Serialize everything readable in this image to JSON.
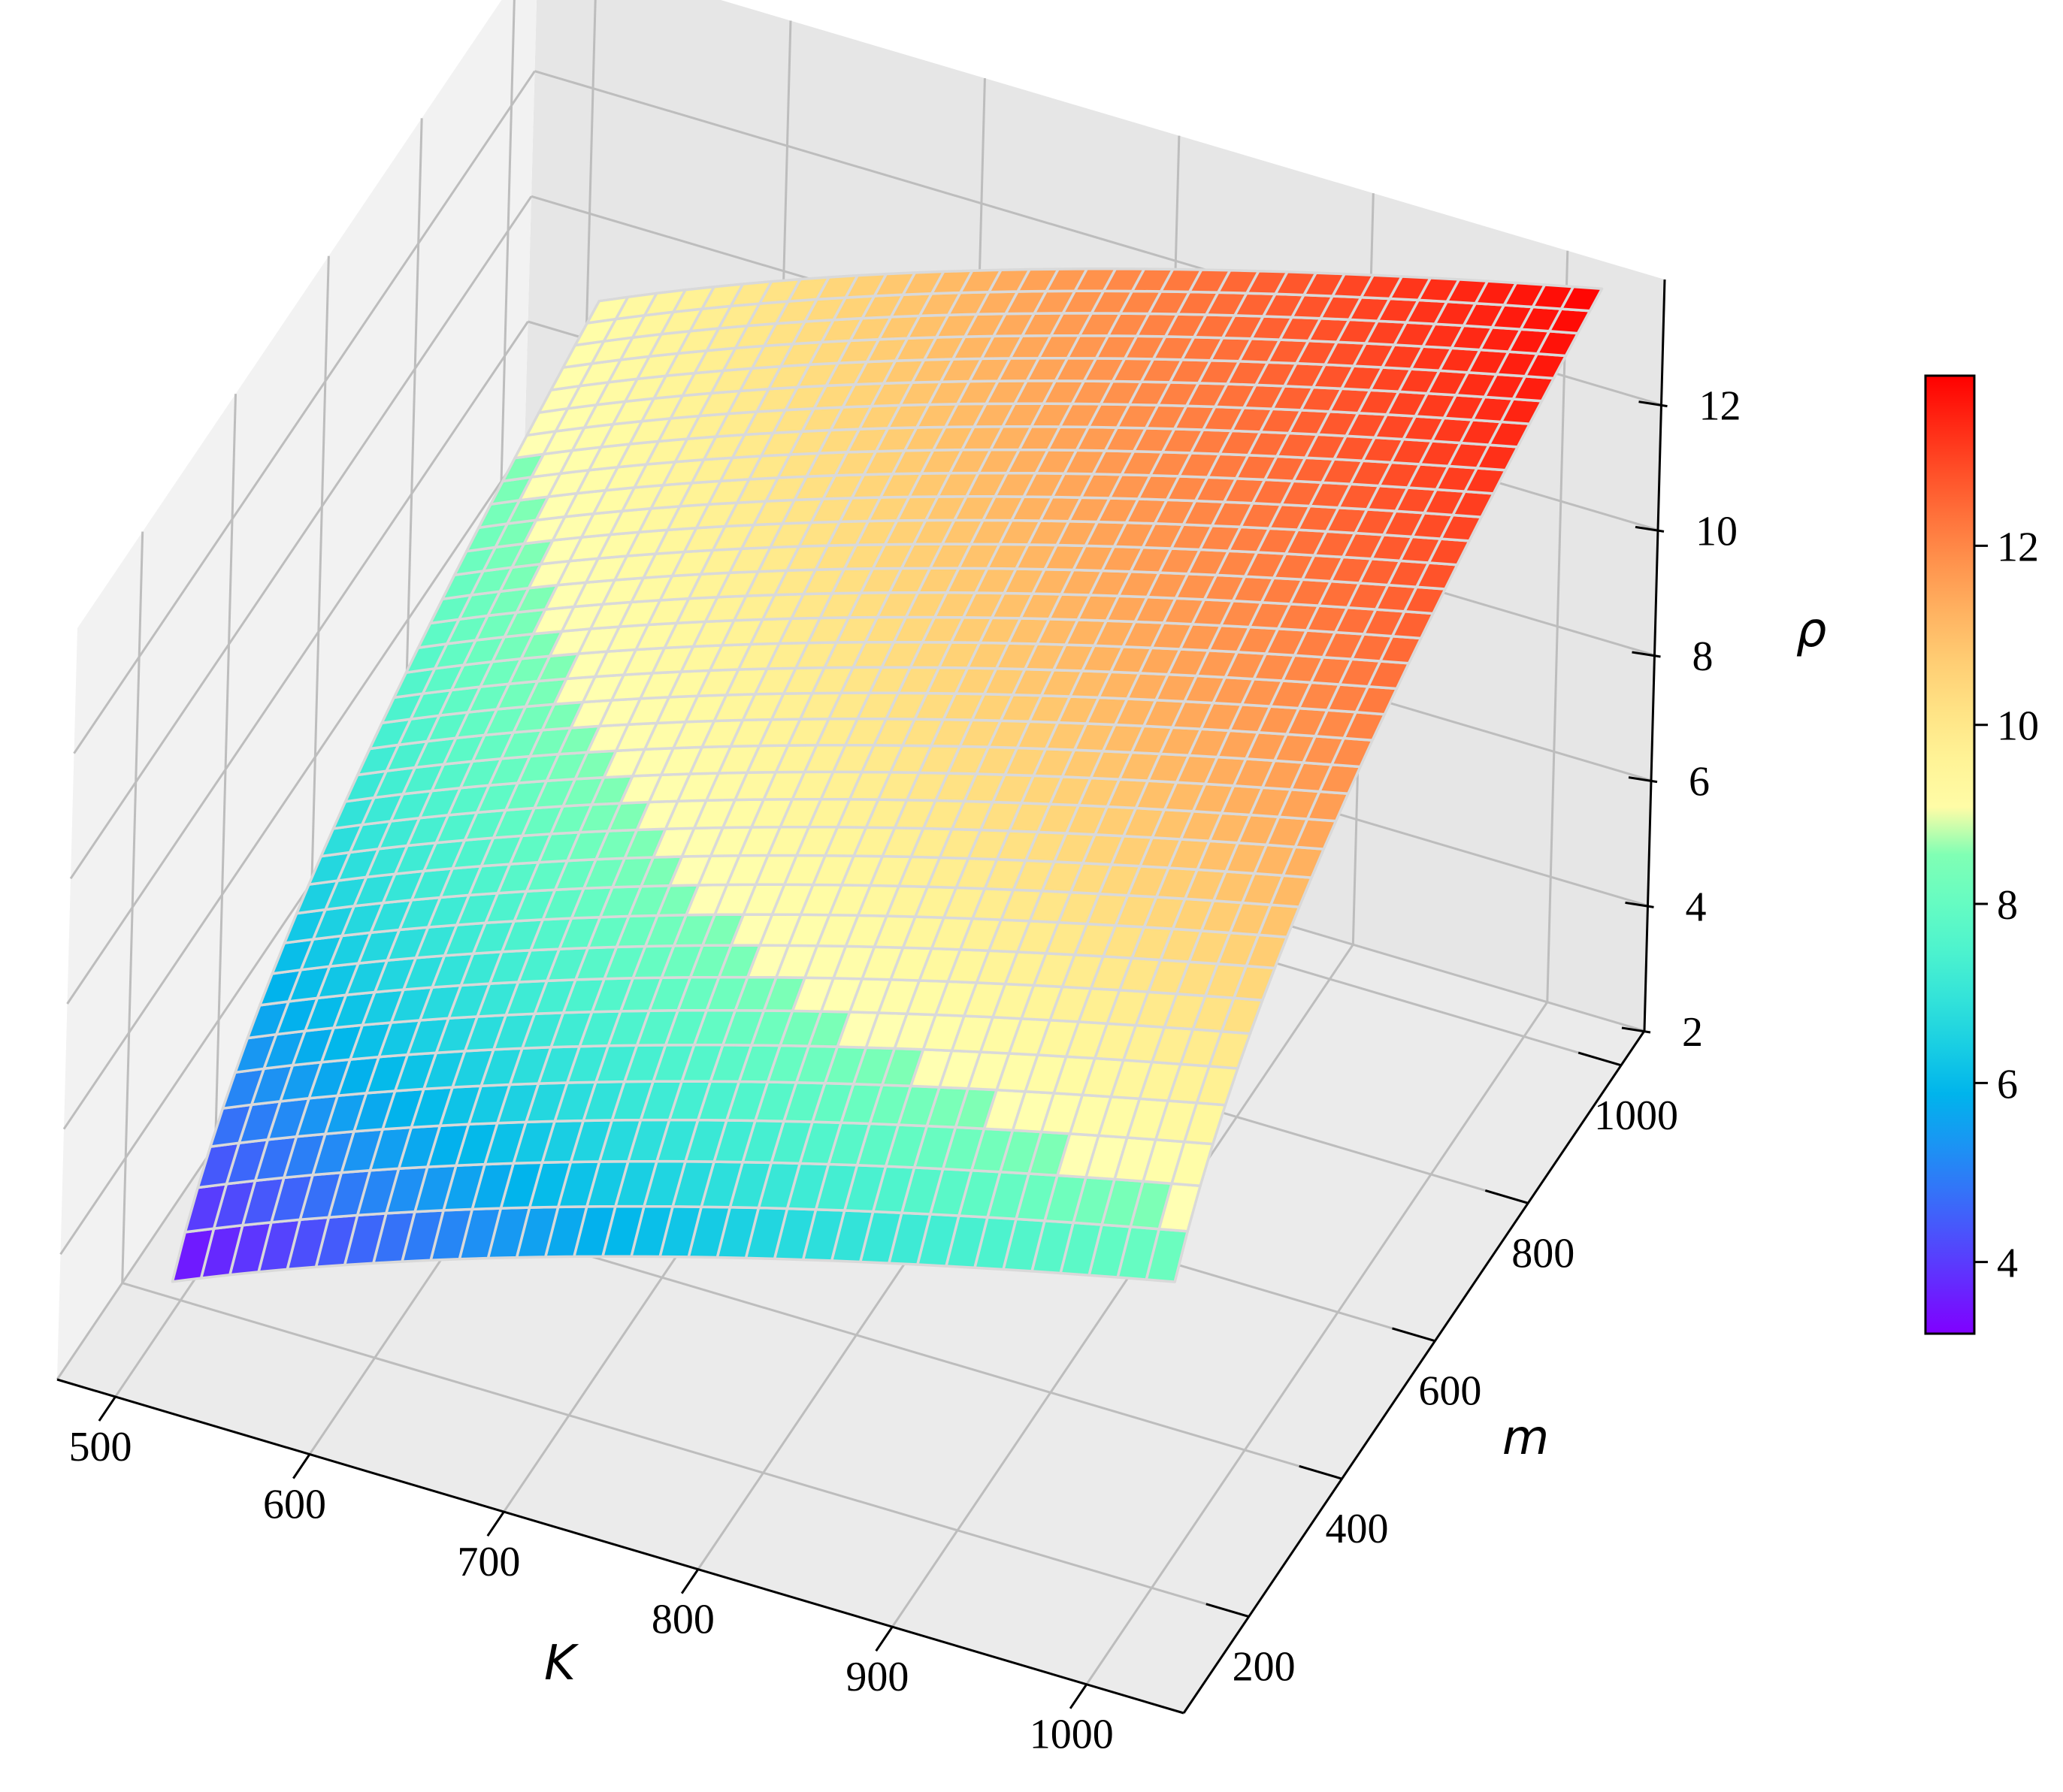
{
  "chart_data": {
    "type": "surface3d",
    "title": "",
    "xlabel": "K",
    "ylabel": "m",
    "zlabel": "ρ",
    "x_ticks": [
      "500",
      "600",
      "700",
      "800",
      "900",
      "1000"
    ],
    "y_ticks": [
      "200",
      "400",
      "600",
      "800",
      "1000"
    ],
    "z_ticks": [
      "2",
      "4",
      "6",
      "8",
      "10",
      "12"
    ],
    "xlim": [
      470,
      1050
    ],
    "ylim": [
      60,
      1050
    ],
    "zlim": [
      2,
      14
    ],
    "x_range": [
      512,
      1024
    ],
    "y_range": [
      128,
      1024
    ],
    "grid": true,
    "colormap": "rainbow",
    "surface_edge_color": "#d9d9d9",
    "colorbar": {
      "ticks": [
        "4",
        "6",
        "8",
        "10",
        "12"
      ],
      "range": [
        3.2,
        13.9
      ],
      "placement": "right"
    },
    "samples": [
      {
        "K": 512,
        "m": 128,
        "rho": 3.2
      },
      {
        "K": 512,
        "m": 1024,
        "rho": 9.0
      },
      {
        "K": 1024,
        "m": 128,
        "rho": 7.9
      },
      {
        "K": 1024,
        "m": 1024,
        "rho": 13.9
      }
    ]
  }
}
